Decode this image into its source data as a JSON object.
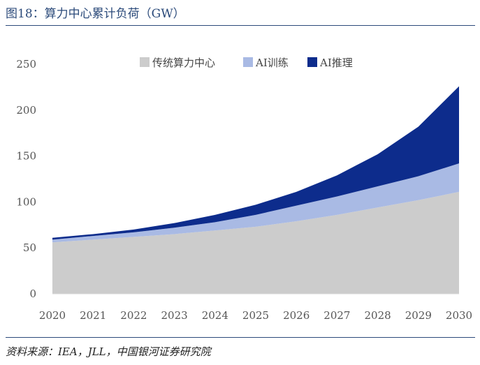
{
  "title": "图18：算力中心累计负荷（GW）",
  "source": "资料来源：IEA，JLL，中国银河证券研究院",
  "colors": {
    "legacy": "#cccccc",
    "training": "#a9bae4",
    "inference": "#0d2c8c",
    "rule": "#2b4a7a"
  },
  "chart_data": {
    "type": "area",
    "stacked": true,
    "title": "算力中心累计负荷（GW）",
    "categories": [
      "2020",
      "2021",
      "2022",
      "2023",
      "2024",
      "2025",
      "2026",
      "2027",
      "2028",
      "2029",
      "2030"
    ],
    "series": [
      {
        "name": "传统算力中心",
        "values": [
          56,
          59,
          62,
          65,
          69,
          73,
          79,
          86,
          94,
          102,
          111
        ]
      },
      {
        "name": "AI训练",
        "values": [
          3,
          4,
          5,
          7,
          9,
          13,
          17,
          20,
          23,
          26,
          31
        ]
      },
      {
        "name": "AI推理",
        "values": [
          2,
          2,
          3,
          5,
          8,
          11,
          15,
          23,
          35,
          54,
          84
        ]
      }
    ],
    "ylim": [
      0,
      250
    ],
    "yticks": [
      "0",
      "50",
      "100",
      "150",
      "200",
      "250"
    ],
    "grid": false,
    "legend_position": "top"
  }
}
